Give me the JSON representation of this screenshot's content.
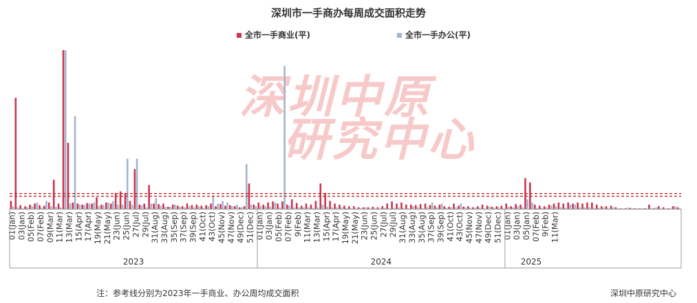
{
  "colors": {
    "commercial": "#c9344e",
    "office": "#a3b3cf",
    "axis": "#999999",
    "text": "#333333",
    "watermark": "#f7c9c9"
  },
  "watermark": {
    "line1": "深圳中原",
    "line2": "研究中心"
  },
  "footnote": "注：参考线分别为2023年一手商业、办公周均成交面积",
  "source": "深圳中原研究中心",
  "chart_data": {
    "type": "bar",
    "title": "深圳市一手商办每周成交面积走势",
    "legend_position": "top",
    "series": [
      {
        "name": "全市一手商业(平)",
        "color": "#c9344e",
        "values": [
          15,
          210,
          7,
          5,
          8,
          10,
          7,
          6,
          12,
          55,
          10,
          300,
          125,
          12,
          10,
          8,
          11,
          10,
          22,
          8,
          12,
          10,
          30,
          33,
          30,
          15,
          75,
          8,
          10,
          45,
          10,
          9,
          10,
          4,
          8,
          6,
          5,
          10,
          7,
          8,
          6,
          7,
          10,
          5,
          9,
          6,
          7,
          5,
          3,
          5,
          48,
          8,
          12,
          8,
          12,
          14,
          10,
          14,
          8,
          18,
          11,
          6,
          10,
          8,
          15,
          48,
          30,
          15,
          10,
          8,
          6,
          5,
          5,
          3,
          3,
          3,
          4,
          3,
          5,
          10,
          14,
          10,
          12,
          8,
          8,
          7,
          9,
          10,
          7,
          6,
          8,
          5,
          4,
          10,
          6,
          4,
          5,
          3,
          5,
          8,
          6,
          4,
          5,
          6,
          10,
          5,
          9,
          8,
          58,
          50,
          8,
          6,
          5,
          8,
          10,
          12,
          10,
          12,
          10,
          12,
          10,
          12,
          12,
          8,
          5,
          5,
          6,
          3,
          1,
          1,
          2,
          1,
          1,
          1,
          8,
          1,
          5,
          3,
          1,
          5,
          3
        ]
      },
      {
        "name": "全市一手办公(平)",
        "color": "#a3b3cf",
        "values": [
          5,
          3,
          1,
          3,
          5,
          12,
          3,
          15,
          5,
          4,
          3,
          300,
          10,
          175,
          8,
          7,
          10,
          12,
          6,
          7,
          12,
          15,
          8,
          8,
          95,
          8,
          95,
          7,
          3,
          10,
          20,
          6,
          4,
          4,
          8,
          4,
          3,
          5,
          3,
          5,
          2,
          5,
          25,
          10,
          15,
          12,
          5,
          8,
          3,
          85,
          8,
          5,
          6,
          5,
          4,
          12,
          3,
          270,
          6,
          3,
          3,
          3,
          3,
          2,
          3,
          8,
          4,
          3,
          3,
          3,
          2,
          1,
          1,
          1,
          3,
          1,
          1,
          1,
          2,
          1,
          2,
          3,
          2,
          1,
          5,
          3,
          1,
          3,
          12,
          3,
          10,
          2,
          3,
          3,
          10,
          3,
          2,
          2,
          2,
          1,
          4,
          2,
          3,
          1,
          4,
          3,
          5,
          3,
          18,
          12,
          2,
          2,
          3,
          6,
          5,
          3,
          2,
          8,
          8,
          3,
          3,
          3,
          2,
          2,
          3,
          1,
          3,
          1,
          1,
          2,
          1,
          1,
          1,
          1,
          1,
          3,
          1,
          1,
          1,
          5,
          1
        ]
      }
    ],
    "reference_lines": [
      {
        "series": "全市一手商业(平)",
        "value": 29
      },
      {
        "series": "全市一手办公(平)",
        "value": 24
      }
    ],
    "ylim": [
      0,
      300
    ],
    "grid": false,
    "years": [
      {
        "label": "2023",
        "weeks": [
          "01(Jan)",
          "03(Jan)",
          "05(Feb)",
          "07(Feb)",
          "09(Mar)",
          "11(Mar)",
          "13(Mar)",
          "15(Apr)",
          "17(Apr)",
          "19(May)",
          "21(May)",
          "23(Jun)",
          "25(Jun)",
          "27(Jul)",
          "29(Jul)",
          "31(Aug)",
          "33(Aug)",
          "35(Sep)",
          "37(Sep)",
          "39(Sep)",
          "41(Oct)",
          "43(Oct)",
          "45(Nov)",
          "47(Nov)",
          "49(Dec)",
          "51(Dec)"
        ],
        "count": 52
      },
      {
        "label": "2024",
        "weeks": [
          "01(Jan)",
          "03(Jan)",
          "05(Feb)",
          "07(Feb)",
          "9(Feb)",
          "11(Mar)",
          "13(Mar)",
          "15(Apr)",
          "17(Apr)",
          "19(May)",
          "21(May)",
          "23(Jun)",
          "25(Jun)",
          "27(Jul)",
          "29(Jul)",
          "31(Aug)",
          "33(Aug)",
          "35(Aug)",
          "37(Sep)",
          "39(Sep)",
          "41(Oct)",
          "43(Oct)",
          "45(Nov)",
          "47(Nov)",
          "49(Dec)",
          "51(Dec)"
        ],
        "count": 52
      },
      {
        "label": "2025",
        "weeks": [
          "01(Jan)",
          "03(Jan)",
          "05(Jan)",
          "07(Feb)",
          "9(Feb)",
          "11(Mar)"
        ],
        "count": 11
      }
    ]
  }
}
